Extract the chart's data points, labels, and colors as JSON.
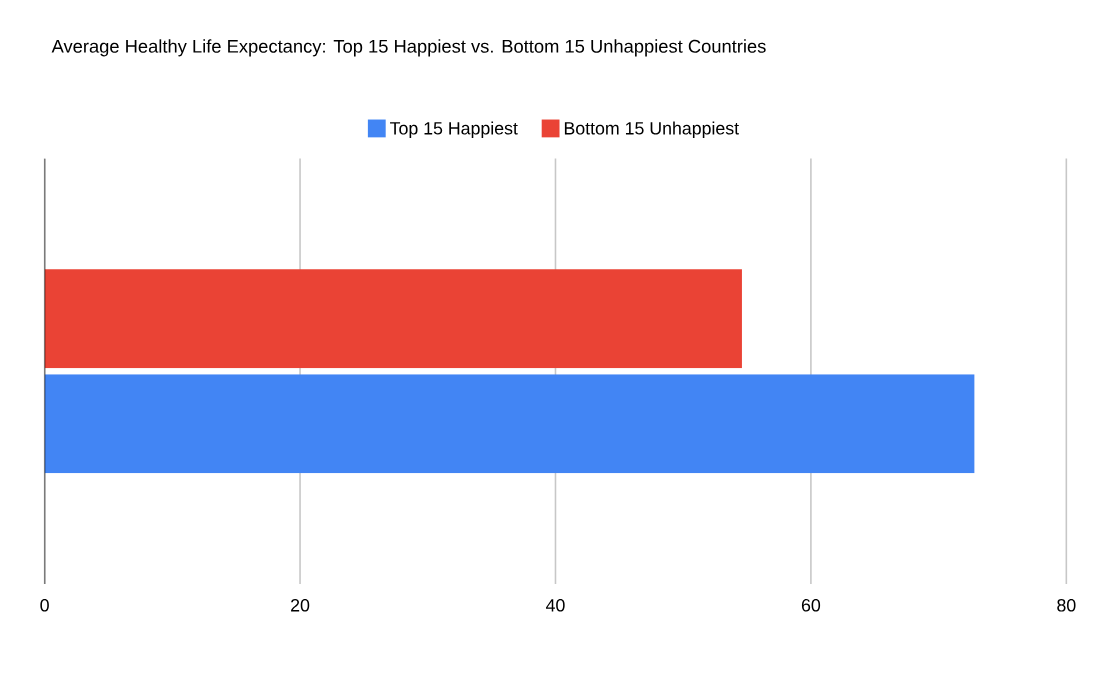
{
  "chart_data": {
    "type": "bar",
    "orientation": "horizontal",
    "title": "Average Healthy Life Expectancy: Top 15 Happiest vs. Bottom 15 Unhappiest Countries",
    "categories": [
      null
    ],
    "series": [
      {
        "name": "Top 15 Happiest",
        "color": "#4285f4",
        "values": [
          72.8
        ]
      },
      {
        "name": "Bottom 15 Unhappiest",
        "color": "#ea4335",
        "values": [
          54.6
        ]
      }
    ],
    "xlim": [
      0,
      80
    ],
    "xticks": [
      0,
      20,
      40,
      60,
      80
    ],
    "grid": "x",
    "legend": "top"
  }
}
